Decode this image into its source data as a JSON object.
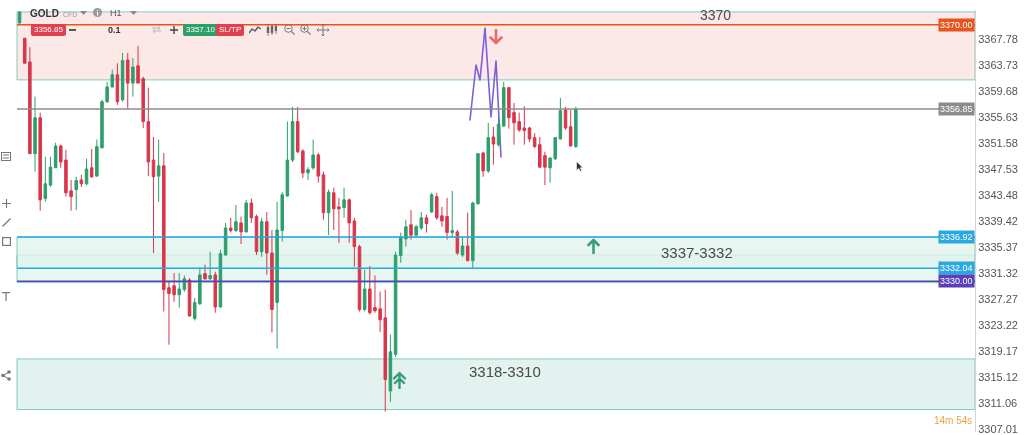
{
  "chart_data": {
    "type": "candlestick",
    "title": "GOLD",
    "categories": [
      null,
      null,
      null,
      null,
      null,
      null,
      null,
      null,
      null,
      null,
      null,
      null,
      null,
      null,
      null,
      null,
      null,
      null,
      null,
      null,
      null,
      null,
      null,
      null,
      null,
      null,
      null,
      null,
      null,
      null,
      null,
      null,
      null,
      null,
      null,
      null,
      null,
      null,
      null,
      null,
      null,
      null,
      null,
      null,
      null,
      null,
      null,
      null,
      null,
      null,
      null,
      null,
      null,
      null,
      null,
      null,
      null,
      null,
      null,
      null,
      null,
      null,
      null,
      null,
      null,
      null,
      null,
      null,
      null,
      null,
      null,
      null,
      null,
      null,
      null,
      null,
      null,
      null,
      null,
      null,
      null,
      null,
      null,
      null,
      null,
      null,
      null,
      null,
      null,
      null,
      null,
      null,
      null,
      null,
      null,
      null,
      null,
      null,
      null,
      null,
      null,
      null,
      null,
      null,
      null,
      null,
      null,
      null,
      null,
      null,
      null,
      null,
      null,
      null,
      null,
      null,
      null,
      null,
      null,
      null,
      null,
      null,
      null,
      null,
      null,
      null,
      null,
      null,
      null,
      null,
      null,
      null,
      null,
      null,
      null,
      null,
      null,
      null,
      null,
      null,
      null,
      null,
      null,
      null,
      null,
      null,
      null,
      null,
      null,
      null,
      null,
      null,
      null,
      null,
      null,
      null,
      null,
      null,
      null,
      null,
      null,
      null,
      null,
      null,
      null,
      null,
      null,
      null,
      null,
      null,
      null,
      null,
      null,
      null,
      null,
      null,
      null,
      null,
      null,
      null,
      null,
      null,
      null,
      null,
      null,
      null
    ],
    "ohlc": [
      [
        3370.3,
        3372.0,
        3370.0,
        3372.0
      ],
      [
        3367.9,
        3367.9,
        3364.0,
        3364.0
      ],
      [
        3364.2,
        3366.5,
        3349.9,
        3349.9
      ],
      [
        3349.9,
        3358.8,
        3347.1,
        3355.5
      ],
      [
        3355.5,
        3356.3,
        3341.0,
        3342.7
      ],
      [
        3342.9,
        3349.4,
        3342.4,
        3345.2
      ],
      [
        3345.0,
        3349.4,
        3344.7,
        3347.8
      ],
      [
        3347.7,
        3351.6,
        3347.7,
        3351.1
      ],
      [
        3351.1,
        3351.3,
        3347.7,
        3348.6
      ],
      [
        3348.9,
        3350.5,
        3343.2,
        3343.8
      ],
      [
        3344.1,
        3345.8,
        3341.0,
        3343.2
      ],
      [
        3344.3,
        3346.3,
        3341.1,
        3345.7
      ],
      [
        3345.8,
        3346.6,
        3344.7,
        3345.2
      ],
      [
        3345.2,
        3349.1,
        3345.0,
        3347.5
      ],
      [
        3347.7,
        3350.6,
        3346.1,
        3346.3
      ],
      [
        3346.4,
        3352.1,
        3346.3,
        3351.0
      ],
      [
        3350.8,
        3358.3,
        3350.8,
        3358.0
      ],
      [
        3358.0,
        3361.1,
        3357.8,
        3360.3
      ],
      [
        3360.3,
        3363.0,
        3360.2,
        3362.2
      ],
      [
        3362.2,
        3364.0,
        3357.5,
        3358.0
      ],
      [
        3358.3,
        3365.6,
        3358.0,
        3364.4
      ],
      [
        3364.5,
        3365.6,
        3356.9,
        3360.9
      ],
      [
        3360.9,
        3364.8,
        3358.8,
        3363.4
      ],
      [
        3363.6,
        3366.7,
        3360.9,
        3360.9
      ],
      [
        3361.6,
        3361.9,
        3353.9,
        3354.9
      ],
      [
        3354.9,
        3360.2,
        3346.4,
        3348.6
      ],
      [
        3348.9,
        3352.5,
        3334.4,
        3346.3
      ],
      [
        3346.4,
        3352.1,
        3342.4,
        3348.0
      ],
      [
        3348.0,
        3350.0,
        3325.3,
        3328.7
      ],
      [
        3329.0,
        3329.9,
        3320.1,
        3328.1
      ],
      [
        3329.3,
        3331.3,
        3326.8,
        3327.9
      ],
      [
        3327.9,
        3331.3,
        3325.9,
        3328.8
      ],
      [
        3328.7,
        3330.9,
        3328.4,
        3330.4
      ],
      [
        3330.2,
        3330.5,
        3324.5,
        3324.6
      ],
      [
        3324.2,
        3327.4,
        3323.9,
        3326.7
      ],
      [
        3326.5,
        3332.1,
        3326.3,
        3331.0
      ],
      [
        3331.2,
        3332.6,
        3330.2,
        3330.4
      ],
      [
        3330.4,
        3334.6,
        3330.2,
        3330.9
      ],
      [
        3331.0,
        3331.5,
        3325.1,
        3326.0
      ],
      [
        3326.0,
        3334.9,
        3325.9,
        3334.3
      ],
      [
        3334.1,
        3339.1,
        3334.0,
        3338.3
      ],
      [
        3338.3,
        3339.9,
        3337.6,
        3337.9
      ],
      [
        3337.9,
        3341.9,
        3337.7,
        3339.3
      ],
      [
        3339.1,
        3340.1,
        3335.8,
        3337.7
      ],
      [
        3337.7,
        3342.7,
        3337.6,
        3342.2
      ],
      [
        3342.2,
        3342.9,
        3339.1,
        3339.9
      ],
      [
        3340.1,
        3340.4,
        3334.1,
        3334.6
      ],
      [
        3334.6,
        3339.9,
        3333.8,
        3339.3
      ],
      [
        3339.3,
        3340.8,
        3331.0,
        3334.4
      ],
      [
        3334.4,
        3338.0,
        3322.0,
        3325.6
      ],
      [
        3326.7,
        3342.4,
        3319.5,
        3338.0
      ],
      [
        3337.9,
        3343.9,
        3336.2,
        3343.5
      ],
      [
        3343.3,
        3354.9,
        3343.2,
        3348.9
      ],
      [
        3348.9,
        3357.2,
        3348.6,
        3354.9
      ],
      [
        3354.9,
        3357.2,
        3350.0,
        3350.2
      ],
      [
        3350.3,
        3350.6,
        3346.1,
        3346.9
      ],
      [
        3346.9,
        3347.8,
        3345.8,
        3347.4
      ],
      [
        3347.7,
        3352.1,
        3347.4,
        3349.7
      ],
      [
        3349.7,
        3350.0,
        3345.4,
        3346.4
      ],
      [
        3346.6,
        3347.1,
        3339.6,
        3340.7
      ],
      [
        3340.7,
        3344.3,
        3337.2,
        3343.9
      ],
      [
        3343.8,
        3344.6,
        3338.0,
        3341.3
      ],
      [
        3341.6,
        3343.0,
        3336.0,
        3341.3
      ],
      [
        3341.5,
        3344.6,
        3339.9,
        3342.7
      ],
      [
        3342.7,
        3342.9,
        3336.0,
        3339.1
      ],
      [
        3339.4,
        3339.9,
        3332.3,
        3335.4
      ],
      [
        3335.4,
        3335.7,
        3325.3,
        3325.6
      ],
      [
        3325.6,
        3331.8,
        3325.3,
        3328.8
      ],
      [
        3328.8,
        3332.4,
        3324.8,
        3325.1
      ],
      [
        3325.9,
        3330.9,
        3325.1,
        3325.4
      ],
      [
        3325.7,
        3328.4,
        3322.1,
        3324.0
      ],
      [
        3324.3,
        3328.7,
        3309.7,
        3314.7
      ],
      [
        3312.9,
        3321.7,
        3311.2,
        3319.0
      ],
      [
        3318.6,
        3334.6,
        3318.2,
        3334.1
      ],
      [
        3334.0,
        3337.6,
        3332.9,
        3336.8
      ],
      [
        3336.6,
        3339.6,
        3335.4,
        3338.5
      ],
      [
        3338.8,
        3341.1,
        3336.5,
        3337.2
      ],
      [
        3337.2,
        3338.8,
        3336.9,
        3338.5
      ],
      [
        3338.3,
        3340.8,
        3338.0,
        3339.9
      ],
      [
        3339.9,
        3340.4,
        3337.6,
        3339.0
      ],
      [
        3340.8,
        3343.8,
        3340.7,
        3343.5
      ],
      [
        3343.2,
        3343.8,
        3339.6,
        3339.9
      ],
      [
        3340.2,
        3341.6,
        3338.5,
        3339.4
      ],
      [
        3340.1,
        3343.0,
        3336.5,
        3337.6
      ],
      [
        3337.6,
        3344.1,
        3336.9,
        3337.9
      ],
      [
        3337.7,
        3338.0,
        3334.1,
        3334.4
      ],
      [
        3334.1,
        3336.9,
        3333.8,
        3335.5
      ],
      [
        3335.5,
        3340.7,
        3333.2,
        3333.2
      ],
      [
        3333.2,
        3342.4,
        3332.0,
        3342.2
      ],
      [
        3342.1,
        3350.0,
        3341.9,
        3349.9
      ],
      [
        3350.0,
        3350.2,
        3346.3,
        3347.2
      ],
      [
        3347.2,
        3354.7,
        3346.9,
        3352.4
      ],
      [
        3352.5,
        3354.1,
        3348.2,
        3351.4
      ],
      [
        3351.3,
        3355.5,
        3351.0,
        3354.5
      ],
      [
        3354.2,
        3361.1,
        3354.1,
        3360.2
      ],
      [
        3360.2,
        3360.3,
        3353.8,
        3355.5
      ],
      [
        3356.3,
        3357.8,
        3351.3,
        3354.7
      ],
      [
        3354.9,
        3356.3,
        3353.3,
        3353.6
      ],
      [
        3353.9,
        3357.3,
        3351.3,
        3353.5
      ],
      [
        3353.9,
        3354.1,
        3351.7,
        3352.2
      ],
      [
        3352.4,
        3353.1,
        3350.8,
        3351.0
      ],
      [
        3351.3,
        3352.5,
        3347.7,
        3347.8
      ],
      [
        3349.6,
        3350.2,
        3345.0,
        3347.8
      ],
      [
        3347.7,
        3349.4,
        3345.4,
        3349.2
      ],
      [
        3349.1,
        3352.5,
        3348.9,
        3352.4
      ],
      [
        3352.2,
        3358.6,
        3352.1,
        3356.6
      ],
      [
        3356.7,
        3357.2,
        3353.6,
        3353.9
      ],
      [
        3354.1,
        3356.7,
        3351.0,
        3351.1
      ],
      [
        3351.0,
        3357.2,
        3350.8,
        3356.85
      ],
      null,
      null,
      null,
      null,
      null,
      null,
      null,
      null,
      null,
      null,
      null,
      null,
      null,
      null,
      null,
      null,
      null,
      null,
      null,
      null,
      null,
      null,
      null,
      null,
      null,
      null,
      null,
      null,
      null,
      null,
      null,
      null,
      null,
      null,
      null,
      null,
      null,
      null,
      null,
      null,
      null,
      null,
      null,
      null,
      null,
      null,
      null,
      null,
      null,
      null,
      null,
      null,
      null,
      null,
      null,
      null,
      null,
      null,
      null,
      null,
      null,
      null,
      null,
      null,
      null,
      null,
      null,
      null,
      null,
      null,
      null,
      null,
      null,
      null,
      null,
      null,
      null
    ],
    "colors": [
      "#2f9e6d",
      "#d8364b",
      "#d8364b",
      "#2f9e6d",
      "#d8364b",
      "#2f9e6d",
      "#2f9e6d",
      "#2f9e6d",
      "#d8364b",
      "#d8364b",
      "#d8364b",
      "#2f9e6d",
      "#d8364b",
      "#2f9e6d",
      "#d8364b",
      "#2f9e6d",
      "#2f9e6d",
      "#2f9e6d",
      "#2f9e6d",
      "#d8364b",
      "#2f9e6d",
      "#d8364b",
      "#2f9e6d",
      "#d8364b",
      "#d8364b",
      "#d8364b",
      "#d8364b",
      "#2f9e6d",
      "#d8364b",
      "#d8364b",
      "#d8364b",
      "#2f9e6d",
      "#2f9e6d",
      "#d8364b",
      "#2f9e6d",
      "#2f9e6d",
      "#d8364b",
      "#2f9e6d",
      "#d8364b",
      "#2f9e6d",
      "#2f9e6d",
      "#d8364b",
      "#2f9e6d",
      "#d8364b",
      "#2f9e6d",
      "#d8364b",
      "#d8364b",
      "#2f9e6d",
      "#d8364b",
      "#d8364b",
      "#2f9e6d",
      "#2f9e6d",
      "#2f9e6d",
      "#2f9e6d",
      "#d8364b",
      "#d8364b",
      "#2f9e6d",
      "#2f9e6d",
      "#d8364b",
      "#d8364b",
      "#2f9e6d",
      "#d8364b",
      "#d8364b",
      "#2f9e6d",
      "#d8364b",
      "#d8364b",
      "#d8364b",
      "#2f9e6d",
      "#d8364b",
      "#d8364b",
      "#d8364b",
      "#d8364b",
      "#2f9e6d",
      "#2f9e6d",
      "#2f9e6d",
      "#2f9e6d",
      "#d8364b",
      "#2f9e6d",
      "#2f9e6d",
      "#d8364b",
      "#2f9e6d",
      "#d8364b",
      "#d8364b",
      "#d8364b",
      "#2f9e6d",
      "#d8364b",
      "#2f9e6d",
      "#d8364b",
      "#2f9e6d",
      "#2f9e6d",
      "#d8364b",
      "#2f9e6d",
      "#d8364b",
      "#2f9e6d",
      "#2f9e6d",
      "#d8364b",
      "#d8364b",
      "#d8364b",
      "#d8364b",
      "#d8364b",
      "#d8364b",
      "#d8364b",
      "#d8364b",
      "#2f9e6d",
      "#2f9e6d",
      "#2f9e6d",
      "#d8364b",
      "#d8364b",
      "#2f9e6d",
      null,
      null,
      null,
      null,
      null,
      null,
      null,
      null,
      null,
      null,
      null,
      null,
      null,
      null,
      null,
      null,
      null,
      null,
      null,
      null,
      null,
      null,
      null,
      null,
      null,
      null,
      null,
      null,
      null,
      null,
      null,
      null,
      null,
      null,
      null,
      null,
      null,
      null,
      null,
      null,
      null,
      null,
      null,
      null,
      null,
      null,
      null,
      null,
      null,
      null,
      null,
      null,
      null,
      null,
      null,
      null,
      null,
      null,
      null,
      null,
      null,
      null,
      null,
      null,
      null,
      null,
      null,
      null,
      null,
      null,
      null,
      null,
      null,
      null,
      null,
      null,
      null
    ],
    "ylim": [
      3306.5,
      3372.3
    ],
    "yticks": [
      3307.01,
      3311.06,
      3315.12,
      3319.17,
      3323.22,
      3327.27,
      3331.32,
      3335.37,
      3339.42,
      3343.48,
      3347.53,
      3351.58,
      3355.63,
      3359.68,
      3363.73,
      3367.78
    ],
    "tick_labels": "y",
    "bands": [
      {
        "axis": "y",
        "from": 3361.4,
        "to": 3372.0,
        "label": "3370",
        "color": "#fde3e3"
      },
      {
        "axis": "y",
        "from": 3329.8,
        "to": 3334.1,
        "color": "#e2f4ee"
      },
      {
        "axis": "y",
        "from": 3332.0,
        "to": 3336.9,
        "label": "3337-3332",
        "color": "#e2f4ee"
      },
      {
        "axis": "y",
        "from": 3310.0,
        "to": 3317.9,
        "label": "3318-3310",
        "color": "#dcefea"
      }
    ],
    "ref_lines": [
      {
        "axis": "y",
        "value": 3370,
        "label": "3370.00",
        "color": "#e8541e"
      },
      {
        "axis": "y",
        "value": 3356.85,
        "label": "3356.85",
        "color": "#8c8c8c"
      },
      {
        "axis": "y",
        "value": 3336.92,
        "label": "3336.92",
        "color": "#2aa8e0"
      },
      {
        "axis": "y",
        "value": 3332.04,
        "label": "3332.04",
        "color": "#2aa8e0"
      },
      {
        "axis": "y",
        "value": 3330,
        "label": "3330.00",
        "color": "#5b3fb8"
      }
    ],
    "annotations": [
      "CFD",
      "H1",
      "3356.85",
      "0.1",
      "3357.10",
      "SL/TP",
      "14m 54s"
    ]
  }
}
